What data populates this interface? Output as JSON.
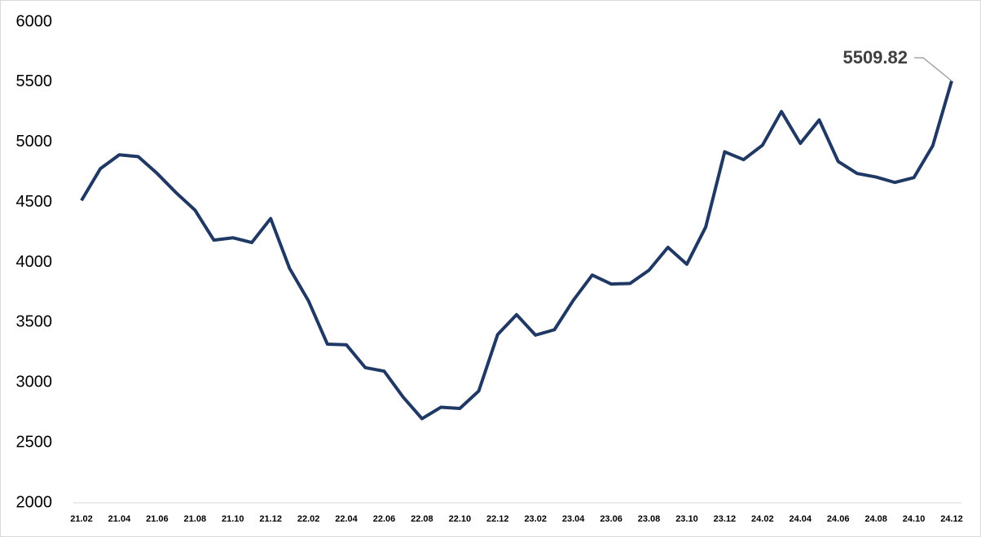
{
  "chart_data": {
    "type": "line",
    "categories": [
      "21.02",
      null,
      "21.04",
      null,
      "21.06",
      null,
      "21.08",
      null,
      "21.10",
      null,
      "21.12",
      null,
      "22.02",
      null,
      "22.04",
      null,
      "22.06",
      null,
      "22.08",
      null,
      "22.10",
      null,
      "22.12",
      null,
      "23.02",
      null,
      "23.04",
      null,
      "23.06",
      null,
      "23.08",
      null,
      "23.10",
      null,
      "23.12",
      null,
      "24.02",
      null,
      "24.04",
      null,
      "24.06",
      null,
      "24.08",
      null,
      "24.10",
      null,
      "24.12"
    ],
    "series": [
      {
        "color": "#1f3864",
        "values": [
          4515,
          4780,
          4895,
          4880,
          4740,
          4580,
          4435,
          4185,
          4205,
          4165,
          4365,
          3950,
          3680,
          3320,
          3315,
          3125,
          3095,
          2880,
          2700,
          2795,
          2785,
          2930,
          3400,
          3565,
          3395,
          3440,
          3685,
          3895,
          3820,
          3825,
          3935,
          4125,
          3985,
          4295,
          4920,
          4855,
          4975,
          5255,
          4990,
          5185,
          4840,
          4740,
          4710,
          4665,
          4705,
          4970,
          5509.82
        ]
      }
    ],
    "ylim": [
      2000,
      6000
    ],
    "yticks": [
      2000,
      2500,
      3000,
      3500,
      4000,
      4500,
      5000,
      5500,
      6000
    ]
  }
}
